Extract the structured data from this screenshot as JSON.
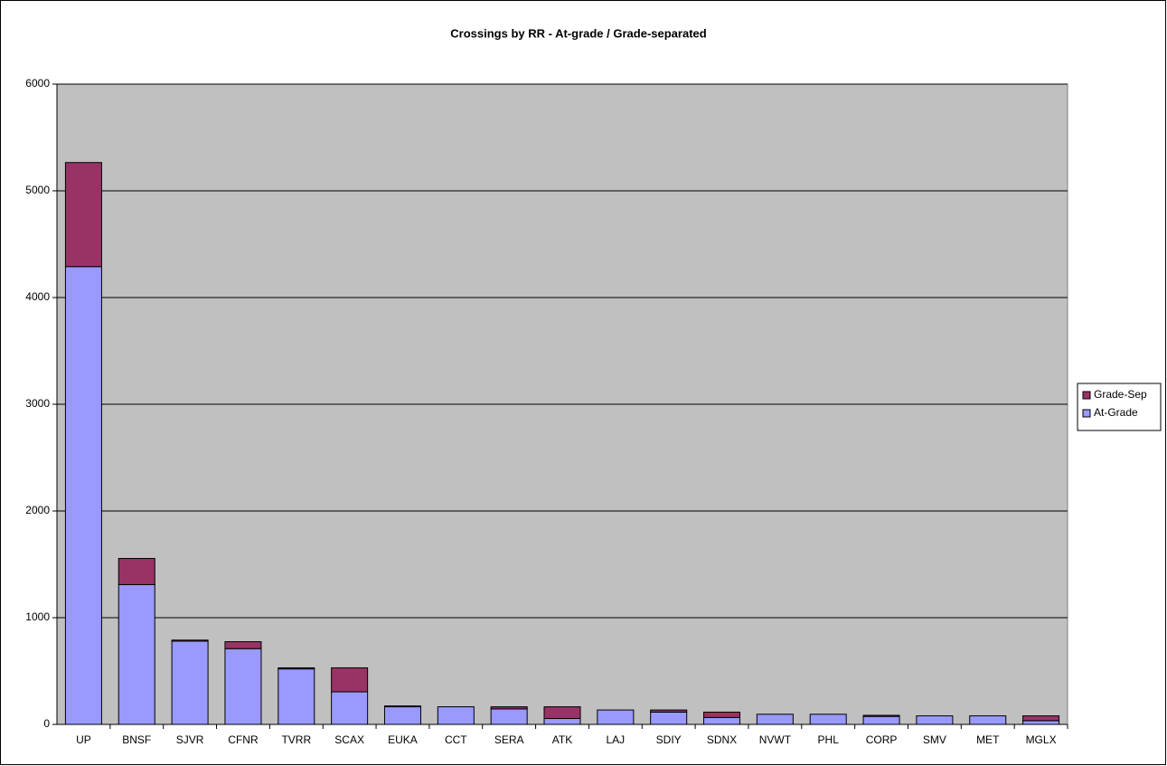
{
  "chart_data": {
    "type": "stacked_bar",
    "title": "Crossings by RR - At-grade / Grade-separated",
    "categories": [
      "UP",
      "BNSF",
      "SJVR",
      "CFNR",
      "TVRR",
      "SCAX",
      "EUKA",
      "CCT",
      "SERA",
      "ATK",
      "LAJ",
      "SDIY",
      "SDNX",
      "NVWT",
      "PHL",
      "CORP",
      "SMV",
      "MET",
      "MGLX"
    ],
    "series": [
      {
        "name": "At-Grade",
        "color": "#9999ff",
        "values": [
          4290,
          1310,
          780,
          710,
          520,
          305,
          165,
          165,
          145,
          55,
          135,
          115,
          65,
          95,
          95,
          75,
          80,
          80,
          35
        ]
      },
      {
        "name": "Grade-Sep",
        "color": "#993366",
        "values": [
          975,
          245,
          10,
          65,
          10,
          225,
          8,
          0,
          20,
          110,
          0,
          20,
          50,
          0,
          0,
          10,
          0,
          0,
          45
        ]
      }
    ],
    "ylim": [
      0,
      6000
    ],
    "yticks": [
      0,
      1000,
      2000,
      3000,
      4000,
      5000,
      6000
    ],
    "grid": true,
    "legend": "right",
    "plot_background": "#c0c0c0"
  }
}
